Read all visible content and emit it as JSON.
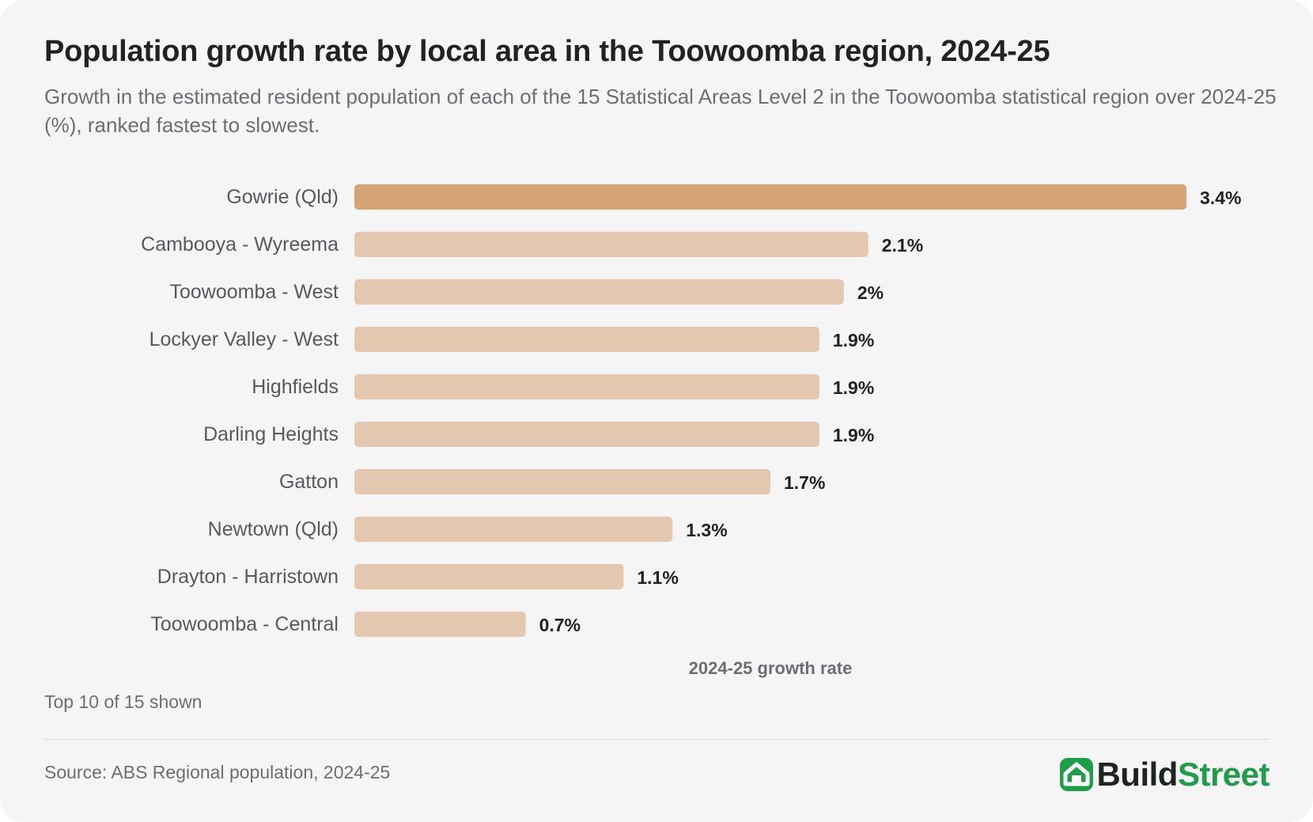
{
  "title": "Population growth rate by local area in the Toowoomba region, 2024-25",
  "subtitle": "Growth in the estimated resident population of each of the 15 Statistical Areas Level 2 in the Toowoomba statistical region over 2024-25 (%), ranked fastest to slowest.",
  "note": "Top 10 of 15 shown",
  "source": "Source: ABS Regional population, 2024-25",
  "brand": {
    "part1": "Build",
    "part2": "Street",
    "icon": "house-icon"
  },
  "colors": {
    "highlight": "#d4a474",
    "bar": "#e3c7ae",
    "brand_green": "#1f9e4a",
    "background": "#f5f5f5"
  },
  "chart_data": {
    "type": "bar",
    "orientation": "horizontal",
    "categories": [
      "Gowrie (Qld)",
      "Cambooya - Wyreema",
      "Toowoomba - West",
      "Lockyer Valley - West",
      "Highfields",
      "Darling Heights",
      "Gatton",
      "Newtown (Qld)",
      "Drayton - Harristown",
      "Toowoomba - Central"
    ],
    "values": [
      3.4,
      2.1,
      2.0,
      1.9,
      1.9,
      1.9,
      1.7,
      1.3,
      1.1,
      0.7
    ],
    "value_labels": [
      "3.4%",
      "2.1%",
      "2%",
      "1.9%",
      "1.9%",
      "1.9%",
      "1.7%",
      "1.3%",
      "1.1%",
      "0.7%"
    ],
    "highlighted_index": 0,
    "xlabel": "2024-25 growth rate",
    "xlim": [
      0,
      3.4
    ],
    "grid": false,
    "legend": "none"
  }
}
